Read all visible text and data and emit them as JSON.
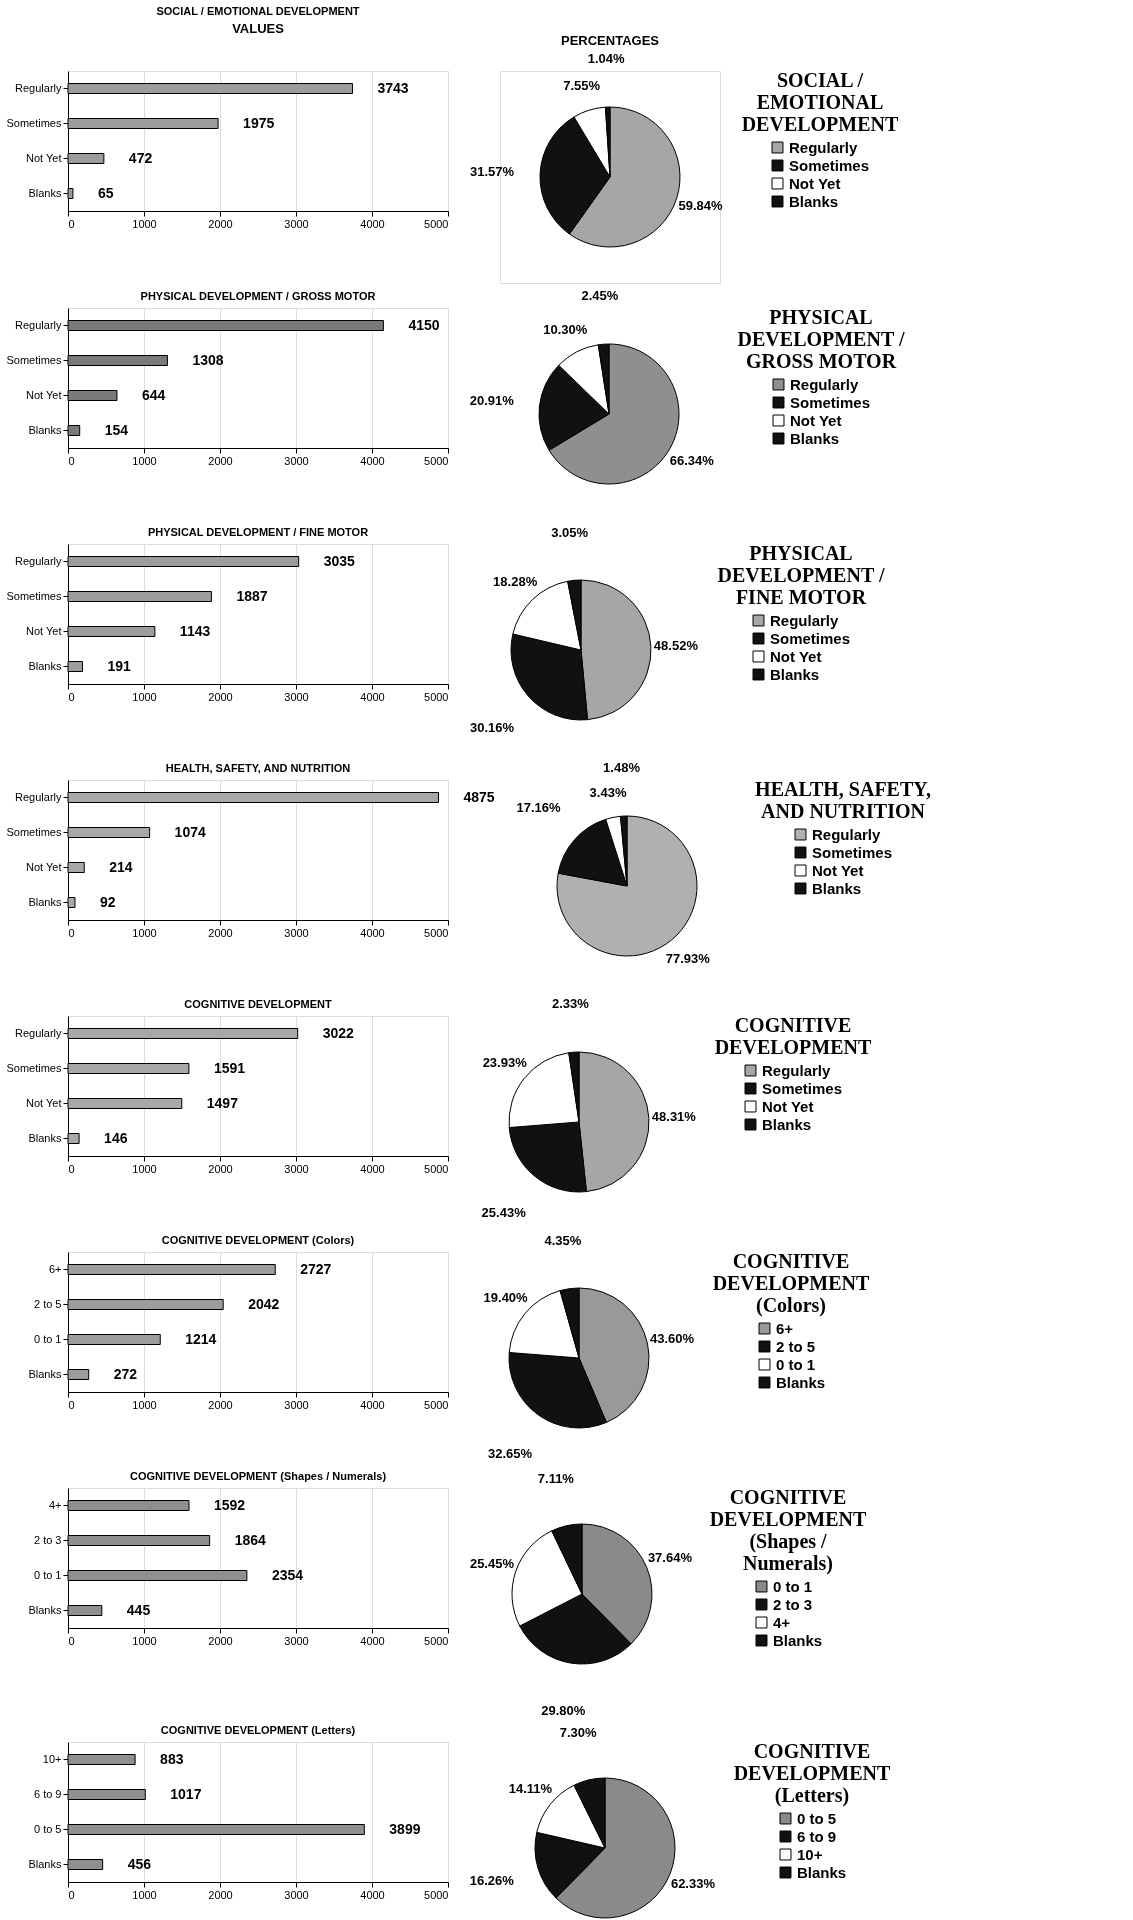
{
  "chart_data": [
    {
      "type": "bar",
      "orientation": "horizontal",
      "title": "SOCIAL / EMOTIONAL DEVELOPMENT",
      "annotations": [
        "VALUES"
      ],
      "categories": [
        "Regularly",
        "Sometimes",
        "Not Yet",
        "Blanks"
      ],
      "values": [
        3743,
        1975,
        472,
        65
      ],
      "color": "#9c9c9c",
      "xlim": [
        0,
        5000
      ],
      "xticks": [
        0,
        1000,
        2000,
        3000,
        4000,
        5000
      ],
      "grid": "x",
      "data_labels": true
    },
    {
      "type": "pie",
      "legend_title": "SOCIAL / EMOTIONAL DEVELOPMENT",
      "annotations": [
        "PERCENTAGES"
      ],
      "categories": [
        "Regularly",
        "Sometimes",
        "Not Yet",
        "Blanks"
      ],
      "values": [
        59.84,
        31.57,
        7.55,
        1.04
      ],
      "value_labels": [
        "59.84%",
        "31.57%",
        "7.55%",
        "1.04%"
      ],
      "colors": [
        "#a6a6a6",
        "#111111",
        "#ffffff",
        "#111111"
      ],
      "legend": "right"
    },
    {
      "type": "bar",
      "orientation": "horizontal",
      "title": "PHYSICAL DEVELOPMENT / GROSS MOTOR",
      "categories": [
        "Regularly",
        "Sometimes",
        "Not Yet",
        "Blanks"
      ],
      "values": [
        4150,
        1308,
        644,
        154
      ],
      "color": "#7a7a7a",
      "xlim": [
        0,
        5000
      ],
      "xticks": [
        0,
        1000,
        2000,
        3000,
        4000,
        5000
      ],
      "grid": "x",
      "data_labels": true
    },
    {
      "type": "pie",
      "legend_title": "PHYSICAL DEVELOPMENT / GROSS MOTOR",
      "categories": [
        "Regularly",
        "Sometimes",
        "Not Yet",
        "Blanks"
      ],
      "values": [
        66.34,
        20.91,
        10.3,
        2.45
      ],
      "value_labels": [
        "66.34%",
        "20.91%",
        "10.30%",
        "2.45%"
      ],
      "colors": [
        "#8f8f8f",
        "#111111",
        "#ffffff",
        "#111111"
      ],
      "legend": "right"
    },
    {
      "type": "bar",
      "orientation": "horizontal",
      "title": "PHYSICAL DEVELOPMENT / FINE MOTOR",
      "categories": [
        "Regularly",
        "Sometimes",
        "Not Yet",
        "Blanks"
      ],
      "values": [
        3035,
        1887,
        1143,
        191
      ],
      "color": "#9c9c9c",
      "xlim": [
        0,
        5000
      ],
      "xticks": [
        0,
        1000,
        2000,
        3000,
        4000,
        5000
      ],
      "grid": "x",
      "data_labels": true
    },
    {
      "type": "pie",
      "legend_title": "PHYSICAL DEVELOPMENT / FINE MOTOR",
      "categories": [
        "Regularly",
        "Sometimes",
        "Not Yet",
        "Blanks"
      ],
      "values": [
        48.52,
        30.16,
        18.28,
        3.05
      ],
      "value_labels": [
        "48.52%",
        "30.16%",
        "18.28%",
        "3.05%"
      ],
      "colors": [
        "#a6a6a6",
        "#111111",
        "#ffffff",
        "#111111"
      ],
      "legend": "right"
    },
    {
      "type": "bar",
      "orientation": "horizontal",
      "title": "HEALTH, SAFETY, AND NUTRITION",
      "categories": [
        "Regularly",
        "Sometimes",
        "Not Yet",
        "Blanks"
      ],
      "values": [
        4875,
        1074,
        214,
        92
      ],
      "color": "#a8a8a8",
      "xlim": [
        0,
        5000
      ],
      "xticks": [
        0,
        1000,
        2000,
        3000,
        4000,
        5000
      ],
      "grid": "x",
      "data_labels": true
    },
    {
      "type": "pie",
      "legend_title": "HEALTH, SAFETY, AND NUTRITION",
      "categories": [
        "Regularly",
        "Sometimes",
        "Not Yet",
        "Blanks"
      ],
      "values": [
        77.93,
        17.16,
        3.43,
        1.48
      ],
      "value_labels": [
        "77.93%",
        "17.16%",
        "3.43%",
        "1.48%"
      ],
      "colors": [
        "#b0b0b0",
        "#111111",
        "#ffffff",
        "#111111"
      ],
      "legend": "right"
    },
    {
      "type": "bar",
      "orientation": "horizontal",
      "title": "COGNITIVE DEVELOPMENT",
      "categories": [
        "Regularly",
        "Sometimes",
        "Not Yet",
        "Blanks"
      ],
      "values": [
        3022,
        1591,
        1497,
        146
      ],
      "color": "#a8a8a8",
      "xlim": [
        0,
        5000
      ],
      "xticks": [
        0,
        1000,
        2000,
        3000,
        4000,
        5000
      ],
      "grid": "x",
      "data_labels": true
    },
    {
      "type": "pie",
      "legend_title": "COGNITIVE DEVELOPMENT",
      "categories": [
        "Regularly",
        "Sometimes",
        "Not Yet",
        "Blanks"
      ],
      "values": [
        48.31,
        25.43,
        23.93,
        2.33
      ],
      "value_labels": [
        "48.31%",
        "25.43%",
        "23.93%",
        "2.33%"
      ],
      "colors": [
        "#a6a6a6",
        "#111111",
        "#ffffff",
        "#111111"
      ],
      "legend": "right"
    },
    {
      "type": "bar",
      "orientation": "horizontal",
      "title": "COGNITIVE DEVELOPMENT (Colors)",
      "categories": [
        "6+",
        "2 to 5",
        "0 to 1",
        "Blanks"
      ],
      "values": [
        2727,
        2042,
        1214,
        272
      ],
      "color": "#9c9c9c",
      "xlim": [
        0,
        5000
      ],
      "xticks": [
        0,
        1000,
        2000,
        3000,
        4000,
        5000
      ],
      "grid": "x",
      "data_labels": true
    },
    {
      "type": "pie",
      "legend_title": "COGNITIVE DEVELOPMENT (Colors)",
      "categories": [
        "6+",
        "2 to 5",
        "0 to 1",
        "Blanks"
      ],
      "values": [
        43.6,
        32.65,
        19.4,
        4.35
      ],
      "value_labels": [
        "43.60%",
        "32.65%",
        "19.40%",
        "4.35%"
      ],
      "colors": [
        "#999999",
        "#111111",
        "#ffffff",
        "#111111"
      ],
      "legend": "right"
    },
    {
      "type": "bar",
      "orientation": "horizontal",
      "title": "COGNITIVE DEVELOPMENT (Shapes / Numerals)",
      "categories": [
        "4+",
        "2 to 3",
        "0 to 1",
        "Blanks"
      ],
      "values": [
        1592,
        1864,
        2354,
        445
      ],
      "color": "#8f8f8f",
      "xlim": [
        0,
        5000
      ],
      "xticks": [
        0,
        1000,
        2000,
        3000,
        4000,
        5000
      ],
      "grid": "x",
      "data_labels": true
    },
    {
      "type": "pie",
      "legend_title": "COGNITIVE DEVELOPMENT (Shapes / Numerals)",
      "categories": [
        "0 to 1",
        "2 to 3",
        "4+",
        "Blanks"
      ],
      "values": [
        37.64,
        29.8,
        25.45,
        7.11
      ],
      "value_labels": [
        "37.64%",
        "29.80%",
        "25.45%",
        "7.11%"
      ],
      "colors": [
        "#8a8a8a",
        "#111111",
        "#ffffff",
        "#111111"
      ],
      "legend": "right"
    },
    {
      "type": "bar",
      "orientation": "horizontal",
      "title": "COGNITIVE DEVELOPMENT (Letters)",
      "categories": [
        "10+",
        "6 to 9",
        "0 to 5",
        "Blanks"
      ],
      "values": [
        883,
        1017,
        3899,
        456
      ],
      "color": "#8f8f8f",
      "xlim": [
        0,
        5000
      ],
      "xticks": [
        0,
        1000,
        2000,
        3000,
        4000,
        5000
      ],
      "grid": "x",
      "data_labels": true
    },
    {
      "type": "pie",
      "legend_title": "COGNITIVE DEVELOPMENT (Letters)",
      "categories": [
        "0 to 5",
        "6 to 9",
        "10+",
        "Blanks"
      ],
      "values": [
        62.33,
        16.26,
        14.11,
        7.3
      ],
      "value_labels": [
        "62.33%",
        "16.26%",
        "14.11%",
        "7.30%"
      ],
      "colors": [
        "#8a8a8a",
        "#111111",
        "#ffffff",
        "#111111"
      ],
      "legend": "right"
    }
  ]
}
